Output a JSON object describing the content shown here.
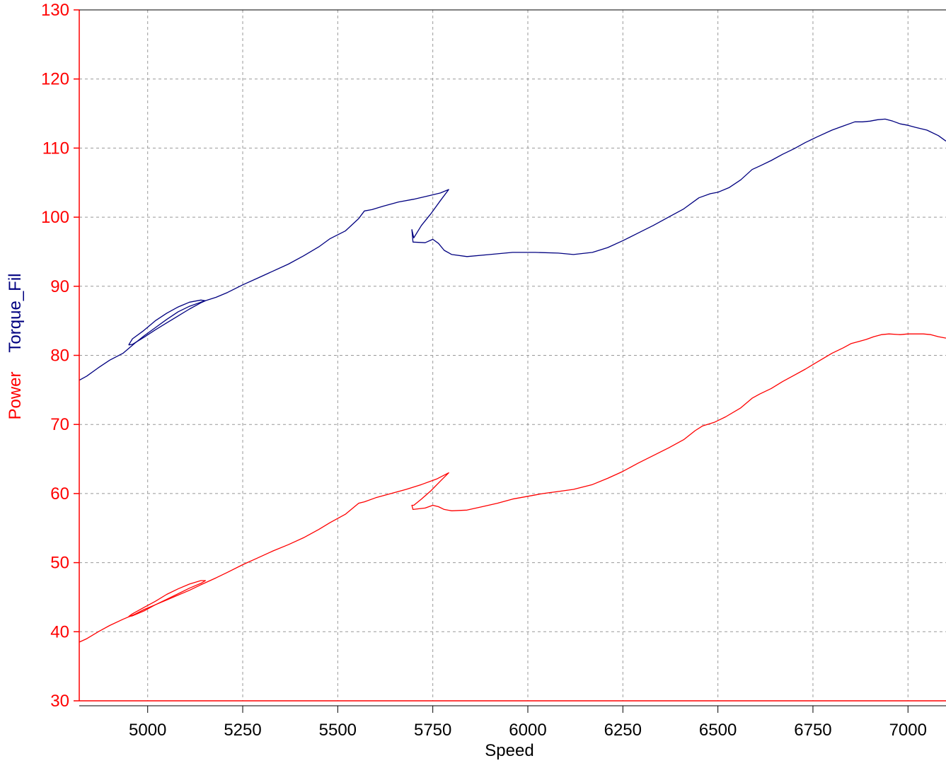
{
  "chart_data": {
    "type": "line",
    "xlabel": "Speed",
    "ylabel_parts": [
      {
        "text": "Power",
        "color": "#ff0000"
      },
      {
        "text": "Torque_Fil",
        "color": "#000080"
      }
    ],
    "xlim": [
      4820,
      7100
    ],
    "ylim": [
      30,
      130
    ],
    "x_ticks": [
      5000,
      5250,
      5500,
      5750,
      6000,
      6250,
      6500,
      6750,
      7000
    ],
    "y_ticks": [
      30,
      40,
      50,
      60,
      70,
      80,
      90,
      100,
      110,
      120,
      130
    ],
    "grid": true,
    "axis_color": "#ff0000",
    "series": [
      {
        "name": "Torque_Fil",
        "color": "#000080",
        "points": [
          [
            4820,
            76.4
          ],
          [
            4840,
            77.0
          ],
          [
            4870,
            78.2
          ],
          [
            4900,
            79.3
          ],
          [
            4935,
            80.3
          ],
          [
            4965,
            81.7
          ],
          [
            4990,
            82.8
          ],
          [
            5020,
            84.0
          ],
          [
            5050,
            85.2
          ],
          [
            5080,
            86.3
          ],
          [
            5110,
            87.1
          ],
          [
            5140,
            87.7
          ],
          [
            5180,
            88.4
          ],
          [
            5210,
            89.1
          ],
          [
            5250,
            90.2
          ],
          [
            5290,
            91.2
          ],
          [
            5330,
            92.2
          ],
          [
            5370,
            93.2
          ],
          [
            5410,
            94.4
          ],
          [
            5450,
            95.7
          ],
          [
            5480,
            96.9
          ],
          [
            5520,
            98.0
          ],
          [
            5555,
            99.8
          ],
          [
            5570,
            100.9
          ],
          [
            5590,
            101.1
          ],
          [
            5620,
            101.6
          ],
          [
            5660,
            102.2
          ],
          [
            5700,
            102.6
          ],
          [
            5740,
            103.1
          ],
          [
            5770,
            103.5
          ],
          [
            5792,
            104.0
          ],
          [
            5770,
            102.4
          ],
          [
            5745,
            100.5
          ],
          [
            5720,
            98.8
          ],
          [
            5700,
            97.0
          ],
          [
            5695,
            98.2
          ],
          [
            5698,
            96.4
          ],
          [
            5730,
            96.3
          ],
          [
            5750,
            96.8
          ],
          [
            5765,
            96.2
          ],
          [
            5780,
            95.2
          ],
          [
            5800,
            94.6
          ],
          [
            5840,
            94.3
          ],
          [
            5900,
            94.6
          ],
          [
            5960,
            94.9
          ],
          [
            6020,
            94.9
          ],
          [
            6080,
            94.8
          ],
          [
            6120,
            94.6
          ],
          [
            6170,
            94.9
          ],
          [
            6210,
            95.6
          ],
          [
            6250,
            96.6
          ],
          [
            6290,
            97.7
          ],
          [
            6330,
            98.8
          ],
          [
            6370,
            100.0
          ],
          [
            6410,
            101.2
          ],
          [
            6450,
            102.8
          ],
          [
            6480,
            103.4
          ],
          [
            6500,
            103.6
          ],
          [
            6530,
            104.3
          ],
          [
            6560,
            105.4
          ],
          [
            6590,
            106.9
          ],
          [
            6610,
            107.4
          ],
          [
            6640,
            108.2
          ],
          [
            6670,
            109.1
          ],
          [
            6700,
            109.9
          ],
          [
            6730,
            110.8
          ],
          [
            6760,
            111.6
          ],
          [
            6800,
            112.6
          ],
          [
            6830,
            113.2
          ],
          [
            6860,
            113.8
          ],
          [
            6880,
            113.8
          ],
          [
            6900,
            113.9
          ],
          [
            6920,
            114.1
          ],
          [
            6940,
            114.2
          ],
          [
            6960,
            113.9
          ],
          [
            6980,
            113.5
          ],
          [
            7000,
            113.3
          ],
          [
            7020,
            113.0
          ],
          [
            7050,
            112.6
          ],
          [
            7080,
            111.8
          ],
          [
            7100,
            111.0
          ]
        ],
        "loop": [
          [
            4950,
            81.5
          ],
          [
            4960,
            82.4
          ],
          [
            4990,
            83.6
          ],
          [
            5020,
            85.0
          ],
          [
            5050,
            86.1
          ],
          [
            5080,
            87.0
          ],
          [
            5110,
            87.7
          ],
          [
            5140,
            88.0
          ],
          [
            5152,
            87.9
          ],
          [
            5140,
            87.6
          ],
          [
            5110,
            86.7
          ],
          [
            5080,
            85.7
          ],
          [
            5050,
            84.7
          ],
          [
            5020,
            83.7
          ],
          [
            4990,
            82.6
          ],
          [
            4960,
            81.6
          ],
          [
            4950,
            81.5
          ]
        ]
      },
      {
        "name": "Power",
        "color": "#ff0000",
        "points": [
          [
            4820,
            38.5
          ],
          [
            4840,
            39.0
          ],
          [
            4870,
            40.0
          ],
          [
            4900,
            40.9
          ],
          [
            4935,
            41.8
          ],
          [
            4965,
            42.5
          ],
          [
            4990,
            43.2
          ],
          [
            5020,
            43.9
          ],
          [
            5050,
            44.6
          ],
          [
            5080,
            45.3
          ],
          [
            5110,
            46.0
          ],
          [
            5140,
            46.8
          ],
          [
            5180,
            47.8
          ],
          [
            5210,
            48.6
          ],
          [
            5250,
            49.7
          ],
          [
            5290,
            50.7
          ],
          [
            5330,
            51.7
          ],
          [
            5370,
            52.6
          ],
          [
            5410,
            53.6
          ],
          [
            5450,
            54.8
          ],
          [
            5480,
            55.8
          ],
          [
            5520,
            57.0
          ],
          [
            5555,
            58.6
          ],
          [
            5570,
            58.8
          ],
          [
            5600,
            59.4
          ],
          [
            5640,
            60.0
          ],
          [
            5680,
            60.6
          ],
          [
            5720,
            61.3
          ],
          [
            5760,
            62.1
          ],
          [
            5792,
            63.0
          ],
          [
            5770,
            61.8
          ],
          [
            5745,
            60.4
          ],
          [
            5720,
            59.2
          ],
          [
            5700,
            58.3
          ],
          [
            5695,
            58.3
          ],
          [
            5698,
            57.7
          ],
          [
            5730,
            57.9
          ],
          [
            5750,
            58.3
          ],
          [
            5765,
            58.1
          ],
          [
            5780,
            57.7
          ],
          [
            5800,
            57.5
          ],
          [
            5840,
            57.6
          ],
          [
            5880,
            58.1
          ],
          [
            5920,
            58.6
          ],
          [
            5960,
            59.2
          ],
          [
            6000,
            59.6
          ],
          [
            6040,
            60.0
          ],
          [
            6080,
            60.3
          ],
          [
            6120,
            60.6
          ],
          [
            6170,
            61.3
          ],
          [
            6210,
            62.2
          ],
          [
            6250,
            63.2
          ],
          [
            6290,
            64.4
          ],
          [
            6330,
            65.5
          ],
          [
            6370,
            66.6
          ],
          [
            6410,
            67.8
          ],
          [
            6440,
            69.1
          ],
          [
            6460,
            69.8
          ],
          [
            6490,
            70.3
          ],
          [
            6520,
            71.1
          ],
          [
            6560,
            72.4
          ],
          [
            6590,
            73.8
          ],
          [
            6610,
            74.4
          ],
          [
            6640,
            75.2
          ],
          [
            6670,
            76.2
          ],
          [
            6700,
            77.1
          ],
          [
            6730,
            78.0
          ],
          [
            6760,
            79.0
          ],
          [
            6800,
            80.3
          ],
          [
            6830,
            81.1
          ],
          [
            6850,
            81.7
          ],
          [
            6870,
            82.0
          ],
          [
            6890,
            82.3
          ],
          [
            6910,
            82.7
          ],
          [
            6930,
            83.0
          ],
          [
            6950,
            83.1
          ],
          [
            6980,
            83.0
          ],
          [
            7000,
            83.1
          ],
          [
            7020,
            83.1
          ],
          [
            7040,
            83.1
          ],
          [
            7060,
            83.0
          ],
          [
            7080,
            82.7
          ],
          [
            7100,
            82.5
          ]
        ],
        "loop": [
          [
            4950,
            42.2
          ],
          [
            4960,
            42.6
          ],
          [
            4990,
            43.5
          ],
          [
            5020,
            44.4
          ],
          [
            5050,
            45.4
          ],
          [
            5080,
            46.2
          ],
          [
            5110,
            46.9
          ],
          [
            5140,
            47.4
          ],
          [
            5152,
            47.4
          ],
          [
            5140,
            47.0
          ],
          [
            5110,
            46.3
          ],
          [
            5080,
            45.5
          ],
          [
            5050,
            44.7
          ],
          [
            5020,
            43.9
          ],
          [
            4990,
            43.0
          ],
          [
            4960,
            42.3
          ],
          [
            4950,
            42.2
          ]
        ]
      }
    ]
  }
}
